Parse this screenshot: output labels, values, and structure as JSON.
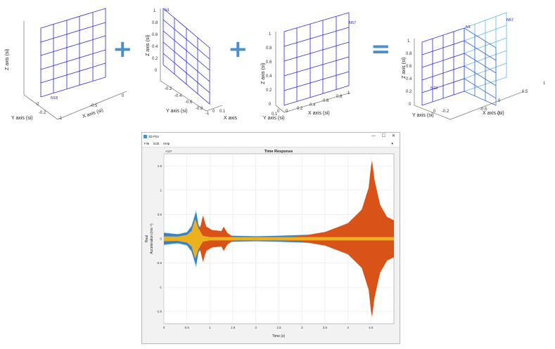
{
  "plots3d": [
    {
      "zlabel": "Z axis (si)",
      "ylabel": "Y axis (si)",
      "xlabel": "X axis (si)",
      "yticks": [
        "0",
        "-0.2"
      ],
      "xticks": [
        "0",
        "-0.5",
        "-1"
      ],
      "nodes": [
        "N18"
      ]
    },
    {
      "zlabel": "Z axis (si)",
      "ylabel": "Y axis (si)",
      "xlabel": "X axis",
      "zticks": [
        "1",
        "0.8",
        "0.6",
        "0.4",
        "0.2",
        "0"
      ],
      "yticks": [
        "-0.2",
        "-0.4",
        "-0.6",
        "-0.8",
        "-1"
      ],
      "xticks": [
        "0",
        "0.1"
      ],
      "nodes": [
        "N1"
      ]
    },
    {
      "zlabel": "Z axis (si)",
      "ylabel": "Y axis (si)",
      "xlabel": "X axis (si)",
      "zticks": [
        "1",
        "0.8",
        "0.6",
        "0.4",
        "0.2",
        "0"
      ],
      "yticks": [
        "0",
        "0.1"
      ],
      "xticks": [
        "0",
        "0.2",
        "0.4",
        "0.6",
        "0.8",
        "1"
      ],
      "nodes": [
        "N57"
      ]
    },
    {
      "zlabel": "Z axis (si)",
      "ylabel": "Y axis (si)",
      "xlabel": "X axis (si)",
      "zticks": [
        "1",
        "0.8",
        "0.6",
        "0.4",
        "0.2",
        "0"
      ],
      "yticks": [
        "0",
        "-0.2"
      ],
      "xticks": [
        "1",
        "0.5",
        "0",
        "-0.5",
        "-1"
      ],
      "nodes": [
        "N57",
        "N1",
        "N18"
      ]
    }
  ],
  "operators": [
    "+",
    "+",
    "="
  ],
  "window": {
    "title": "3D Plot",
    "controls": [
      "—",
      "☐",
      "✕"
    ],
    "menu": [
      "File",
      "Edit",
      "Help"
    ],
    "menu_arrow": "▾"
  },
  "chart_data": {
    "type": "line",
    "title": "Time Response",
    "xlabel": "Time (s)",
    "ylabel_line1": "Real",
    "ylabel_line2": "Acceleration (ms⁻²)",
    "exponent": "×10⁴",
    "xlim": [
      0,
      5
    ],
    "ylim": [
      -1.75,
      1.75
    ],
    "xticks": [
      0,
      0.5,
      1,
      1.5,
      2,
      2.5,
      3,
      3.5,
      4,
      4.5
    ],
    "yticks": [
      1.5,
      1,
      0.5,
      0,
      -0.5,
      -1,
      -1.5
    ],
    "grid": true,
    "series": [
      {
        "color": "#3583c4",
        "halo_color": "#8fc8e8",
        "envelope": [
          [
            0,
            0.12
          ],
          [
            0.3,
            0.09
          ],
          [
            0.5,
            0.13
          ],
          [
            0.6,
            0.25
          ],
          [
            0.7,
            0.55
          ],
          [
            0.75,
            0.28
          ],
          [
            0.85,
            0.11
          ],
          [
            1.0,
            0.08
          ],
          [
            1.5,
            0.06
          ],
          [
            2.0,
            0.05
          ],
          [
            2.5,
            0.06
          ],
          [
            3.0,
            0.075
          ],
          [
            3.5,
            0.09
          ],
          [
            4.0,
            0.11
          ],
          [
            4.5,
            0.14
          ],
          [
            5.0,
            0.16
          ]
        ]
      },
      {
        "color": "#d95319",
        "envelope": [
          [
            0,
            0.02
          ],
          [
            0.7,
            0.03
          ],
          [
            0.8,
            0.28
          ],
          [
            0.85,
            0.48
          ],
          [
            0.92,
            0.25
          ],
          [
            1.05,
            0.18
          ],
          [
            1.25,
            0.16
          ],
          [
            1.3,
            0.25
          ],
          [
            1.38,
            0.12
          ],
          [
            1.5,
            0.04
          ],
          [
            2.0,
            0.02
          ],
          [
            2.5,
            0.025
          ],
          [
            3.0,
            0.06
          ],
          [
            3.5,
            0.14
          ],
          [
            4.0,
            0.32
          ],
          [
            4.3,
            0.6
          ],
          [
            4.45,
            1.05
          ],
          [
            4.52,
            1.65
          ],
          [
            4.58,
            1.2
          ],
          [
            4.7,
            0.7
          ],
          [
            4.85,
            0.45
          ],
          [
            5.0,
            0.38
          ]
        ]
      },
      {
        "color": "#edb120",
        "envelope": [
          [
            0,
            0.05
          ],
          [
            0.3,
            0.045
          ],
          [
            0.5,
            0.08
          ],
          [
            0.6,
            0.16
          ],
          [
            0.68,
            0.42
          ],
          [
            0.75,
            0.22
          ],
          [
            0.85,
            0.06
          ],
          [
            1.0,
            0.035
          ],
          [
            5.0,
            0.035
          ]
        ]
      }
    ]
  }
}
